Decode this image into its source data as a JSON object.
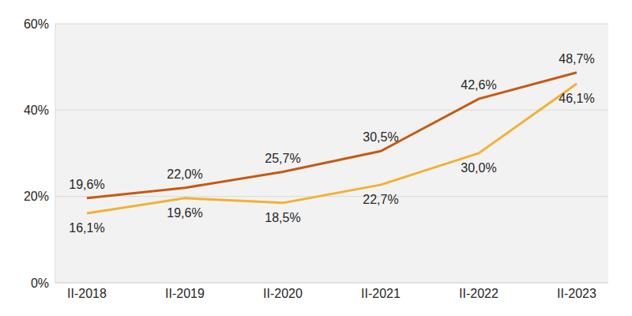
{
  "chart_data": {
    "type": "line",
    "categories": [
      "II-2018",
      "II-2019",
      "II-2020",
      "II-2021",
      "II-2022",
      "II-2023"
    ],
    "series": [
      {
        "color": "#C55A11",
        "marker": "none",
        "values": [
          19.6,
          22.0,
          25.7,
          30.5,
          42.6,
          48.7
        ],
        "value_labels": [
          "19,6%",
          "22,0%",
          "25,7%",
          "30,5%",
          "42,6%",
          "48,7%"
        ]
      },
      {
        "color": "#F2B134",
        "marker": "none",
        "values": [
          16.1,
          19.6,
          18.5,
          22.7,
          30.0,
          46.1
        ],
        "value_labels": [
          "16,1%",
          "19,6%",
          "18,5%",
          "22,7%",
          "30,0%",
          "46,1%"
        ]
      }
    ],
    "ylim": [
      0,
      60
    ],
    "yticks": [
      {
        "value": 0,
        "label": "0%"
      },
      {
        "value": 20,
        "label": "20%"
      },
      {
        "value": 40,
        "label": "40%"
      },
      {
        "value": 60,
        "label": "60%"
      }
    ],
    "grid": true,
    "data_labels": true
  }
}
